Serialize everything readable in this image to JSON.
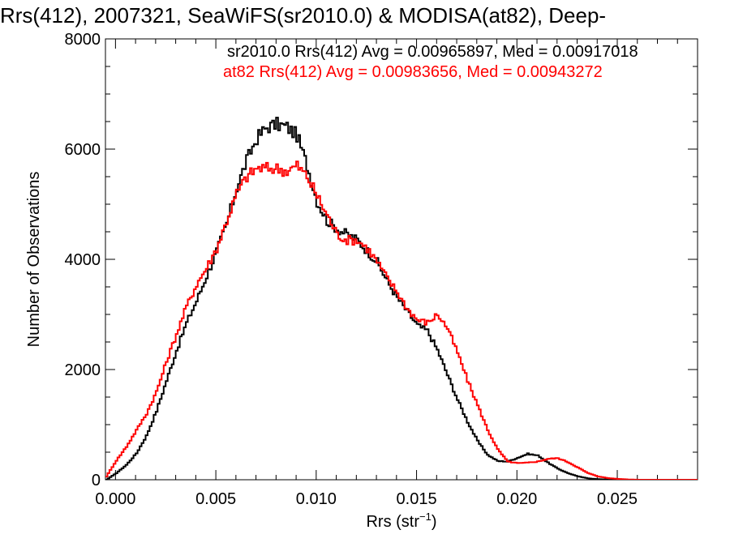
{
  "chart_data": {
    "type": "line",
    "title": "Rrs(412), 2007321, SeaWiFS(sr2010.0) & MODISA(at82), Deep-",
    "xlabel": "Rrs (str",
    "xlabel_sup": "−1",
    "xlabel_close": ")",
    "ylabel": "Number of Observations",
    "xlim": [
      -0.0005,
      0.029
    ],
    "ylim": [
      0,
      8000
    ],
    "x_ticks": [
      0.0,
      0.005,
      0.01,
      0.015,
      0.02,
      0.025
    ],
    "x_tick_labels": [
      "0.000",
      "0.005",
      "0.010",
      "0.015",
      "0.020",
      "0.025"
    ],
    "y_ticks": [
      0,
      2000,
      4000,
      6000,
      8000
    ],
    "y_tick_labels": [
      "0",
      "2000",
      "4000",
      "6000",
      "8000"
    ],
    "grid": false,
    "legend_placement": "top-right",
    "series": [
      {
        "name": "sr2010.0 Rrs(412) Avg = 0.00965897, Med = 0.00917018",
        "color": "#000000",
        "x": [
          -0.0005,
          0.0,
          0.0005,
          0.001,
          0.0015,
          0.002,
          0.0025,
          0.003,
          0.0035,
          0.004,
          0.0045,
          0.005,
          0.0055,
          0.006,
          0.0065,
          0.007,
          0.0075,
          0.008,
          0.0085,
          0.009,
          0.0095,
          0.01,
          0.0105,
          0.011,
          0.0115,
          0.012,
          0.0125,
          0.013,
          0.0135,
          0.014,
          0.0145,
          0.015,
          0.0155,
          0.016,
          0.0165,
          0.017,
          0.0175,
          0.018,
          0.0185,
          0.019,
          0.0195,
          0.02,
          0.0205,
          0.021,
          0.0215,
          0.022,
          0.0225,
          0.023,
          0.0235,
          0.024,
          0.0245,
          0.025,
          0.0255,
          0.026,
          0.027,
          0.028,
          0.029
        ],
        "y": [
          0,
          120,
          270,
          480,
          800,
          1250,
          1800,
          2350,
          2850,
          3250,
          3700,
          4150,
          4650,
          5300,
          5800,
          6200,
          6400,
          6450,
          6400,
          6250,
          5700,
          5050,
          4700,
          4550,
          4450,
          4350,
          4150,
          3950,
          3600,
          3300,
          3050,
          2800,
          2700,
          2350,
          1900,
          1450,
          1050,
          700,
          450,
          340,
          330,
          400,
          470,
          440,
          310,
          200,
          120,
          60,
          25,
          10,
          5,
          0,
          0,
          0,
          0,
          0,
          0
        ]
      },
      {
        "name": "at82 Rrs(412) Avg = 0.00983656, Med = 0.00943272",
        "color": "#ff0000",
        "x": [
          -0.0005,
          0.0,
          0.0005,
          0.001,
          0.0015,
          0.002,
          0.0025,
          0.003,
          0.0035,
          0.004,
          0.0045,
          0.005,
          0.0055,
          0.006,
          0.0065,
          0.007,
          0.0075,
          0.008,
          0.0085,
          0.009,
          0.0095,
          0.01,
          0.0105,
          0.011,
          0.0115,
          0.012,
          0.0125,
          0.013,
          0.0135,
          0.014,
          0.0145,
          0.015,
          0.0155,
          0.016,
          0.0165,
          0.017,
          0.0175,
          0.018,
          0.0185,
          0.019,
          0.0195,
          0.02,
          0.0205,
          0.021,
          0.0215,
          0.022,
          0.0225,
          0.023,
          0.0235,
          0.024,
          0.0245,
          0.025,
          0.0255,
          0.026,
          0.027,
          0.028,
          0.029
        ],
        "y": [
          60,
          350,
          600,
          900,
          1200,
          1600,
          2150,
          2650,
          3150,
          3550,
          3850,
          4200,
          4700,
          5200,
          5500,
          5650,
          5650,
          5650,
          5600,
          5700,
          5500,
          5150,
          4800,
          4450,
          4350,
          4350,
          4200,
          3950,
          3650,
          3400,
          3100,
          2900,
          2850,
          3000,
          2750,
          2300,
          1800,
          1350,
          900,
          550,
          330,
          300,
          310,
          330,
          380,
          390,
          320,
          220,
          120,
          60,
          30,
          15,
          5,
          0,
          0,
          0,
          0
        ]
      }
    ]
  }
}
